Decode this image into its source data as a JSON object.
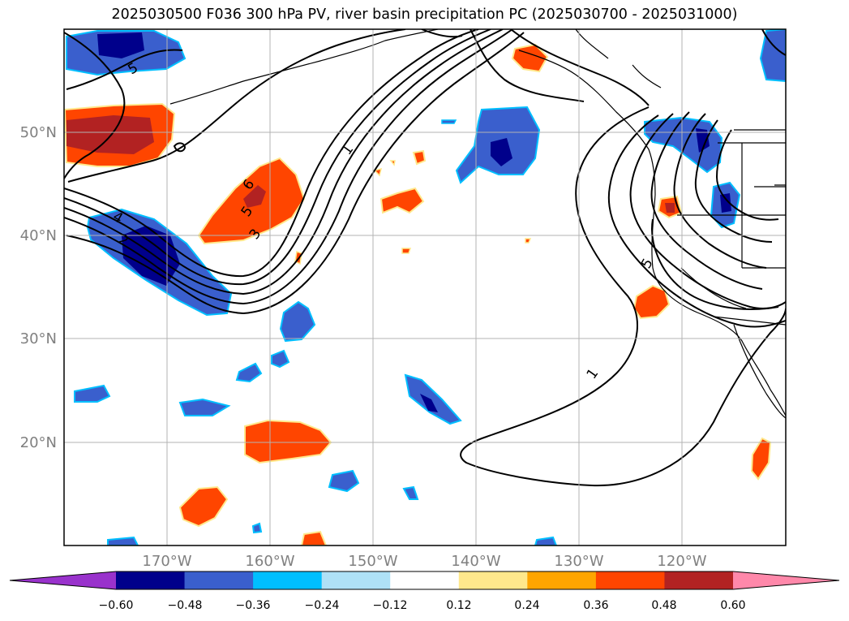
{
  "title": "2025030500 F036 300 hPa PV, river basin precipitation PC (2025030700 - 2025031000)",
  "map": {
    "lon_labels": [
      "170°W",
      "160°W",
      "150°W",
      "140°W",
      "130°W",
      "120°W"
    ],
    "lat_labels": [
      "50°N",
      "40°N",
      "30°N",
      "20°N"
    ],
    "lon_values": [
      -170,
      -160,
      -150,
      -140,
      -130,
      -120
    ],
    "lat_values": [
      50,
      40,
      30,
      20
    ],
    "extent": {
      "lon_min": -180,
      "lon_max": -110,
      "lat_min": 10,
      "lat_max": 60
    },
    "contour_labels": [
      "5",
      "1",
      "4",
      "2",
      "6",
      "5",
      "3",
      "1",
      "5"
    ]
  },
  "colorbar": {
    "tick_labels": [
      "−0.60",
      "−0.48",
      "−0.36",
      "−0.24",
      "−0.12",
      "0.12",
      "0.24",
      "0.36",
      "0.48",
      "0.60"
    ],
    "colors": [
      "#9932cc",
      "#00008b",
      "#3a5fcd",
      "#00bfff",
      "#afe1f7",
      "#ffffff",
      "#ffe88c",
      "#ffa500",
      "#ff4500",
      "#b22222",
      "#ff88aa"
    ]
  }
}
